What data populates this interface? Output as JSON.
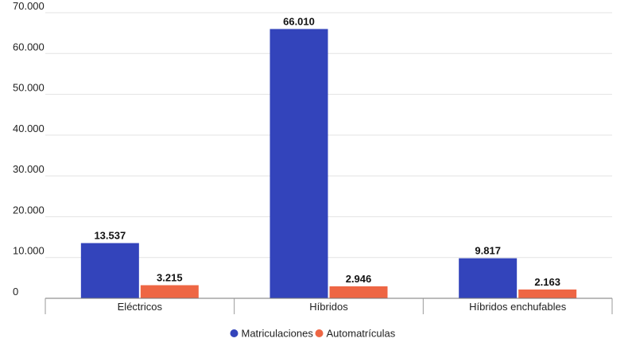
{
  "chart_data": {
    "type": "bar",
    "categories": [
      "Eléctricos",
      "Híbridos",
      "Híbridos enchufables"
    ],
    "series": [
      {
        "name": "Matriculaciones",
        "values": [
          13537,
          66010,
          9817
        ],
        "labels": [
          "13.537",
          "66.010",
          "9.817"
        ],
        "color": "#3344bb"
      },
      {
        "name": "Automatrículas",
        "values": [
          3215,
          2946,
          2163
        ],
        "labels": [
          "3.215",
          "2.946",
          "2.163"
        ],
        "color": "#ee6644"
      }
    ],
    "ylim": [
      0,
      70000
    ],
    "yticks": [
      0,
      10000,
      20000,
      30000,
      40000,
      50000,
      60000,
      70000
    ],
    "ytick_labels": [
      "0",
      "10.000",
      "20.000",
      "30.000",
      "40.000",
      "50.000",
      "60.000",
      "70.000"
    ],
    "grid": true,
    "legend_position": "bottom"
  }
}
